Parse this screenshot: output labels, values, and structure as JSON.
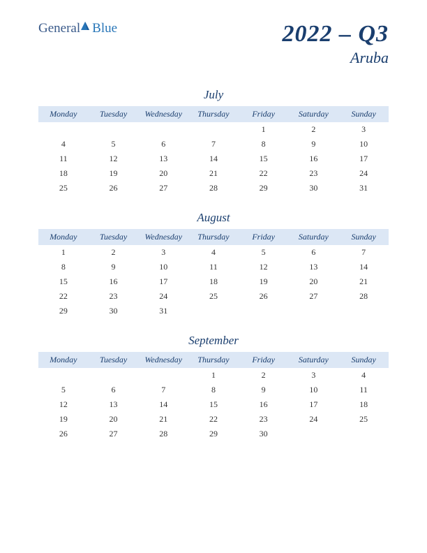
{
  "logo": {
    "text1": "General",
    "text2": "Blue",
    "color1": "#3a5a8a",
    "color2": "#2876b8"
  },
  "header": {
    "quarter": "2022 – Q3",
    "country": "Aruba"
  },
  "styling": {
    "header_bg": "#dce7f5",
    "text_color": "#1a3e6e",
    "body_text": "#333333",
    "background": "#ffffff"
  },
  "day_names": [
    "Monday",
    "Tuesday",
    "Wednesday",
    "Thursday",
    "Friday",
    "Saturday",
    "Sunday"
  ],
  "months": [
    {
      "name": "July",
      "weeks": [
        [
          "",
          "",
          "",
          "",
          "1",
          "2",
          "3"
        ],
        [
          "4",
          "5",
          "6",
          "7",
          "8",
          "9",
          "10"
        ],
        [
          "11",
          "12",
          "13",
          "14",
          "15",
          "16",
          "17"
        ],
        [
          "18",
          "19",
          "20",
          "21",
          "22",
          "23",
          "24"
        ],
        [
          "25",
          "26",
          "27",
          "28",
          "29",
          "30",
          "31"
        ]
      ]
    },
    {
      "name": "August",
      "weeks": [
        [
          "1",
          "2",
          "3",
          "4",
          "5",
          "6",
          "7"
        ],
        [
          "8",
          "9",
          "10",
          "11",
          "12",
          "13",
          "14"
        ],
        [
          "15",
          "16",
          "17",
          "18",
          "19",
          "20",
          "21"
        ],
        [
          "22",
          "23",
          "24",
          "25",
          "26",
          "27",
          "28"
        ],
        [
          "29",
          "30",
          "31",
          "",
          "",
          "",
          ""
        ]
      ]
    },
    {
      "name": "September",
      "weeks": [
        [
          "",
          "",
          "",
          "1",
          "2",
          "3",
          "4"
        ],
        [
          "5",
          "6",
          "7",
          "8",
          "9",
          "10",
          "11"
        ],
        [
          "12",
          "13",
          "14",
          "15",
          "16",
          "17",
          "18"
        ],
        [
          "19",
          "20",
          "21",
          "22",
          "23",
          "24",
          "25"
        ],
        [
          "26",
          "27",
          "28",
          "29",
          "30",
          "",
          ""
        ]
      ]
    }
  ]
}
